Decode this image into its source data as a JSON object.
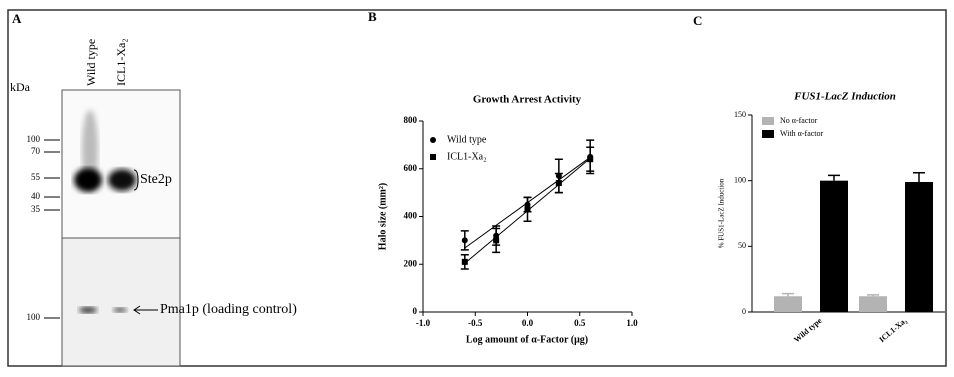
{
  "panel_a": {
    "letter": "A",
    "unit": "kDa",
    "lanes": [
      "Wild type",
      "ICL1-Xa₂"
    ],
    "markers": [
      "100",
      "70",
      "55",
      "40",
      "35",
      "100"
    ],
    "band_labels": [
      "Ste2p",
      "Pma1p (loading control)"
    ]
  },
  "chart_data": [
    {
      "type": "scatter",
      "letter": "B",
      "title": "Growth Arrest Activity",
      "x_label": "Log amount of α-Factor (μg)",
      "y_label": "Halo size (mm²)",
      "x": [
        -0.6,
        -0.3,
        0,
        0.3,
        0.6
      ],
      "series": [
        {
          "name": "Wild type",
          "color": "#000000",
          "marker": "circle",
          "values": [
            300,
            320,
            450,
            570,
            650
          ],
          "errors": [
            40,
            40,
            30,
            70,
            70
          ]
        },
        {
          "name": "ICL1-Xa₂",
          "color": "#000000",
          "marker": "square",
          "values": [
            210,
            300,
            430,
            540,
            640
          ],
          "errors": [
            30,
            50,
            50,
            40,
            50
          ]
        }
      ],
      "xlim": [
        -1,
        1
      ],
      "xticks": [
        {
          "value": -1,
          "label": "-1.0"
        },
        {
          "value": -0.5,
          "label": "-0.5"
        },
        {
          "value": 0,
          "label": "0.0"
        },
        {
          "value": 0.5,
          "label": "0.5"
        },
        {
          "value": 1,
          "label": "1.0"
        }
      ],
      "ylim": [
        0,
        800
      ],
      "yticks": [
        0,
        200,
        400,
        600,
        800
      ]
    },
    {
      "type": "bar",
      "letter": "C",
      "title": "FUS1-LacZ Induction",
      "y_label": "% FUS1-LacZ Induction",
      "categories": [
        "Wild type",
        "ICL1-Xa₂"
      ],
      "series": [
        {
          "name": "No α-factor",
          "color": "#b3b3b3",
          "values": [
            12,
            12
          ],
          "errors": [
            2,
            1
          ]
        },
        {
          "name": "With α-factor",
          "color": "#000000",
          "values": [
            100,
            99
          ],
          "errors": [
            4,
            7
          ]
        }
      ],
      "ylim": [
        0,
        150
      ],
      "yticks": [
        0,
        50,
        100,
        150
      ]
    }
  ]
}
